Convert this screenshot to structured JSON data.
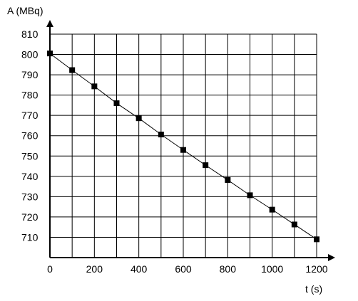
{
  "chart_data": {
    "type": "scatter",
    "ylabel": "A (MBq)",
    "xlabel": "t (s)",
    "xlim": [
      0,
      1200
    ],
    "ylim": [
      700,
      810
    ],
    "x_tick_labels": [
      "0",
      "200",
      "400",
      "600",
      "800",
      "1000",
      "1200"
    ],
    "y_tick_labels": [
      "710",
      "720",
      "730",
      "740",
      "750",
      "760",
      "770",
      "780",
      "790",
      "800",
      "810"
    ],
    "grid": true,
    "series": [
      {
        "marker": "square",
        "connected_with_line": true,
        "points": [
          {
            "x": 0,
            "y": 800.5
          },
          {
            "x": 100,
            "y": 792.3
          },
          {
            "x": 200,
            "y": 784.3
          },
          {
            "x": 300,
            "y": 776.0
          },
          {
            "x": 400,
            "y": 768.6
          },
          {
            "x": 500,
            "y": 760.6
          },
          {
            "x": 600,
            "y": 753.0
          },
          {
            "x": 700,
            "y": 745.5
          },
          {
            "x": 800,
            "y": 738.2
          },
          {
            "x": 900,
            "y": 730.7
          },
          {
            "x": 1000,
            "y": 723.6
          },
          {
            "x": 1100,
            "y": 716.3
          },
          {
            "x": 1200,
            "y": 709.0
          }
        ]
      }
    ]
  },
  "colors": {
    "line": "#000000",
    "marker": "#000000",
    "grid": "#000000",
    "background": "#ffffff"
  }
}
